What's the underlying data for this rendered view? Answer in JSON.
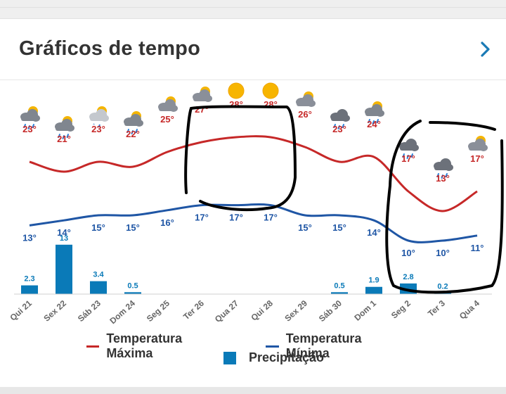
{
  "widget": {
    "title": "Gráficos de tempo",
    "more_icon": "chevron-right-icon"
  },
  "colors": {
    "max": "#c62828",
    "min": "#1f56a5",
    "precip": "#0a7ab8",
    "annotation": "#000000"
  },
  "chart_data": {
    "type": "line",
    "categories": [
      "Qui 21",
      "Sex 22",
      "Sáb 23",
      "Dom 24",
      "Seg 25",
      "Ter 26",
      "Qua 27",
      "Qui 28",
      "Sex 29",
      "Sáb 30",
      "Dom 1",
      "Seg 2",
      "Ter 3",
      "Qua 4"
    ],
    "icons": [
      "partly-cloudy-rain-icon",
      "partly-cloudy-rain-icon",
      "sun-cloud-snow-rain-icon",
      "partly-cloudy-rain-icon",
      "partly-cloudy-icon",
      "partly-cloudy-icon",
      "sun-icon",
      "sun-icon",
      "partly-cloudy-icon",
      "cloud-rain-icon",
      "partly-cloudy-rain-icon",
      "cloud-rain-icon",
      "cloud-rain-icon",
      "partly-cloudy-icon"
    ],
    "series": [
      {
        "name": "Temperatura Máxima",
        "values": [
          23,
          21,
          23,
          22,
          25,
          27,
          28,
          28,
          26,
          23,
          24,
          17,
          13,
          17
        ],
        "labels": [
          "23°",
          "21°",
          "23°",
          "22°",
          "25°",
          "27°",
          "28°",
          "28°",
          "26°",
          "23°",
          "24°",
          "17°",
          "13°",
          "17°"
        ]
      },
      {
        "name": "Temperatura Mínima",
        "values": [
          13,
          14,
          15,
          15,
          16,
          17,
          17,
          17,
          15,
          15,
          14,
          10,
          10,
          11
        ],
        "labels": [
          "13°",
          "14°",
          "15°",
          "15°",
          "16°",
          "17°",
          "17°",
          "17°",
          "15°",
          "15°",
          "14°",
          "10°",
          "10°",
          "11°"
        ]
      },
      {
        "name": "Precipitação",
        "type": "bar",
        "values": [
          2.3,
          13,
          3.4,
          0.5,
          0,
          0,
          0,
          0,
          0,
          0.5,
          1.9,
          2.8,
          0.2,
          0
        ],
        "labels": [
          "2.3",
          "13",
          "3.4",
          "0.5",
          "",
          "",
          "",
          "",
          "",
          "0.5",
          "1.9",
          "2.8",
          "0.2",
          ""
        ]
      }
    ],
    "legend": [
      "Temperatura Máxima",
      "Temperatura Mínima",
      "Precipitação"
    ],
    "legend_position": "bottom"
  }
}
